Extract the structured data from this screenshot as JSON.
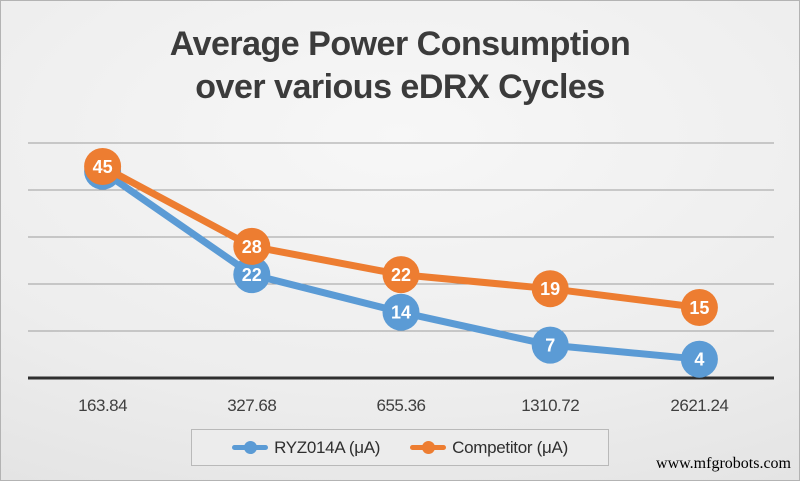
{
  "title": {
    "line1": "Average Power Consumption",
    "line2": "over various eDRX Cycles"
  },
  "watermark": "www.mfgrobots.com",
  "colors": {
    "series_blue": "#5B9BD5",
    "series_orange": "#ED7D31",
    "gridline": "#9e9e9e",
    "axis_line": "#2f2f2f",
    "tick_label": "#3f3f3f",
    "data_label": "#ffffff"
  },
  "chart_data": {
    "type": "line",
    "title": "Average Power Consumption over various eDRX Cycles",
    "xlabel": "",
    "ylabel": "",
    "categories": [
      "163.84",
      "327.68",
      "655.36",
      "1310.72",
      "2621.24"
    ],
    "series": [
      {
        "name": "RYZ014A (μA)",
        "values": [
          44,
          22,
          14,
          7,
          4
        ],
        "color": "#5B9BD5"
      },
      {
        "name": "Competitor (μA)",
        "values": [
          45,
          28,
          22,
          19,
          15
        ],
        "color": "#ED7D31"
      }
    ],
    "ylim": [
      0,
      50
    ],
    "grid_step": 10,
    "grid": true,
    "y_axis_labels_visible": false,
    "data_labels": "inside markers, white bold",
    "legend_position": "bottom"
  }
}
